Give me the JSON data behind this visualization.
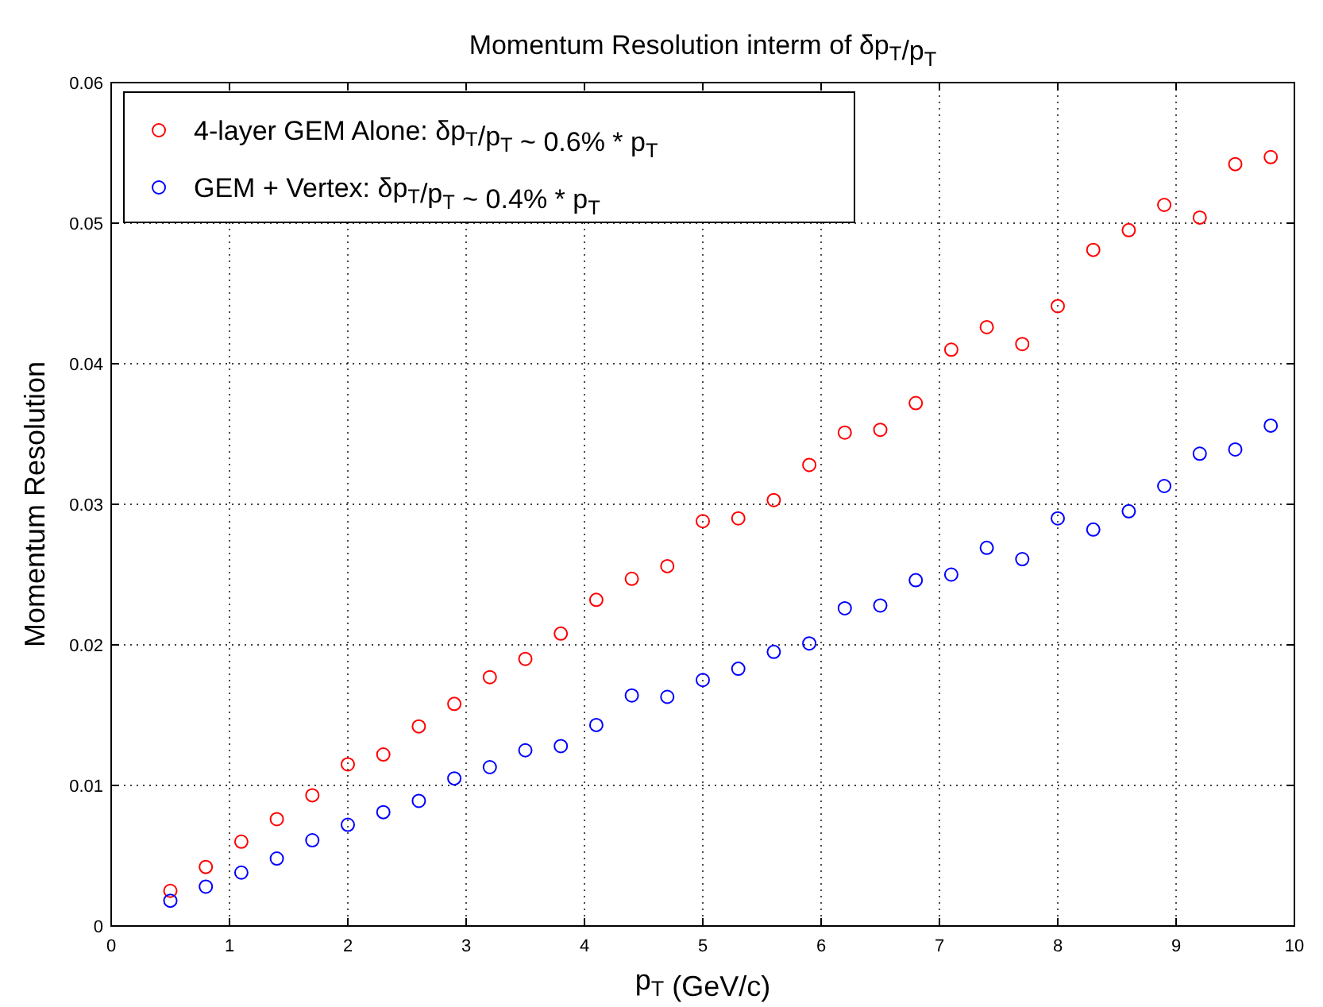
{
  "chart_data": {
    "type": "scatter",
    "title": "Momentum Resolution interm of δp$_{T}$/p$_{T}$",
    "xlabel": "p$_{T}$ (GeV/c)",
    "ylabel": "Momentum Resolution",
    "x": [
      0.5,
      0.8,
      1.1,
      1.4,
      1.7,
      2.0,
      2.3,
      2.6,
      2.9,
      3.2,
      3.5,
      3.8,
      4.1,
      4.4,
      4.7,
      5.0,
      5.3,
      5.6,
      5.9,
      6.2,
      6.5,
      6.8,
      7.1,
      7.4,
      7.7,
      8.0,
      8.3,
      8.6,
      8.9,
      9.2,
      9.5,
      9.8
    ],
    "series": [
      {
        "name": "4-layer GEM Alone: δp$_{T}$/p$_{T}$ ~ 0.6% * p$_{T}$",
        "color": "#ff0000",
        "values": [
          0.0025,
          0.0042,
          0.006,
          0.0076,
          0.0093,
          0.0115,
          0.0122,
          0.0142,
          0.0158,
          0.0177,
          0.019,
          0.0208,
          0.0232,
          0.0247,
          0.0256,
          0.0288,
          0.029,
          0.0303,
          0.0328,
          0.0351,
          0.0353,
          0.0372,
          0.041,
          0.0426,
          0.0414,
          0.0441,
          0.0481,
          0.0495,
          0.0513,
          0.0504,
          0.0542,
          0.0547
        ]
      },
      {
        "name": "GEM + Vertex: δp$_{T}$/p$_{T}$ ~ 0.4% * p$_{T}$",
        "color": "#0000ff",
        "values": [
          0.0018,
          0.0028,
          0.0038,
          0.0048,
          0.0061,
          0.0072,
          0.0081,
          0.0089,
          0.0105,
          0.0113,
          0.0125,
          0.0128,
          0.0143,
          0.0164,
          0.0163,
          0.0175,
          0.0183,
          0.0195,
          0.0201,
          0.0226,
          0.0228,
          0.0246,
          0.025,
          0.0269,
          0.0261,
          0.029,
          0.0282,
          0.0295,
          0.0313,
          0.0336,
          0.0339,
          0.0356
        ]
      }
    ],
    "xlim": [
      0,
      10
    ],
    "xticks": [
      0,
      1,
      2,
      3,
      4,
      5,
      6,
      7,
      8,
      9,
      10
    ],
    "ylim": [
      0,
      0.06
    ],
    "yticks": [
      0,
      0.01,
      0.02,
      0.03,
      0.04,
      0.05,
      0.06
    ],
    "grid": true,
    "legend": "top left",
    "marker": "circle"
  }
}
